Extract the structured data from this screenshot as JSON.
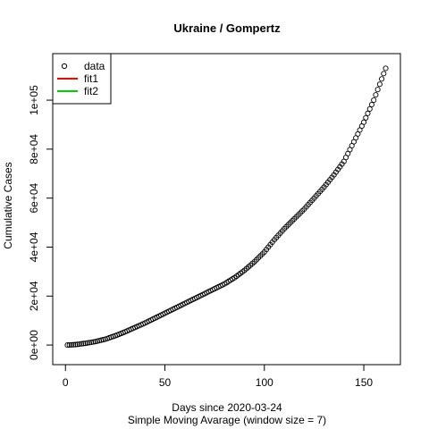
{
  "chart_data": {
    "type": "scatter",
    "title": "Ukraine / Gompertz",
    "xlabel": "Days since 2020-03-24",
    "subtitle": "Simple Moving Avarage (window size = 7)",
    "ylabel": "Cumulative Cases",
    "xlim": [
      -6.4,
      168.4
    ],
    "ylim": [
      -8000,
      119000
    ],
    "x_ticks": [
      0,
      50,
      100,
      150
    ],
    "x_tick_labels": [
      "0",
      "50",
      "100",
      "150"
    ],
    "y_ticks": [
      0,
      20000,
      40000,
      60000,
      80000,
      100000
    ],
    "y_tick_labels": [
      "0e+00",
      "2e+04",
      "4e+04",
      "6e+04",
      "8e+04",
      "1e+05"
    ],
    "legend": {
      "position": "top-left",
      "entries": [
        {
          "label": "data",
          "symbol": "circle",
          "color": "#000000"
        },
        {
          "label": "fit1",
          "symbol": "line",
          "color": "#ff0000"
        },
        {
          "label": "fit2",
          "symbol": "line",
          "color": "#00cd00"
        }
      ]
    },
    "series": [
      {
        "name": "data",
        "marker": "circle",
        "color": "#000000",
        "knots": {
          "x": [
            1,
            5,
            10,
            15,
            20,
            25,
            30,
            35,
            40,
            45,
            50,
            55,
            60,
            65,
            70,
            75,
            80,
            85,
            90,
            95,
            100,
            105,
            110,
            115,
            120,
            125,
            130,
            135,
            140,
            145,
            150,
            155,
            161
          ],
          "y": [
            0,
            180,
            700,
            1400,
            2400,
            3800,
            5400,
            7200,
            9000,
            11000,
            13000,
            15000,
            17000,
            19000,
            21000,
            23000,
            25000,
            27500,
            30500,
            34000,
            38000,
            43000,
            47500,
            51500,
            55500,
            60000,
            64500,
            69500,
            75000,
            83000,
            91000,
            100000,
            113000
          ]
        }
      }
    ]
  }
}
